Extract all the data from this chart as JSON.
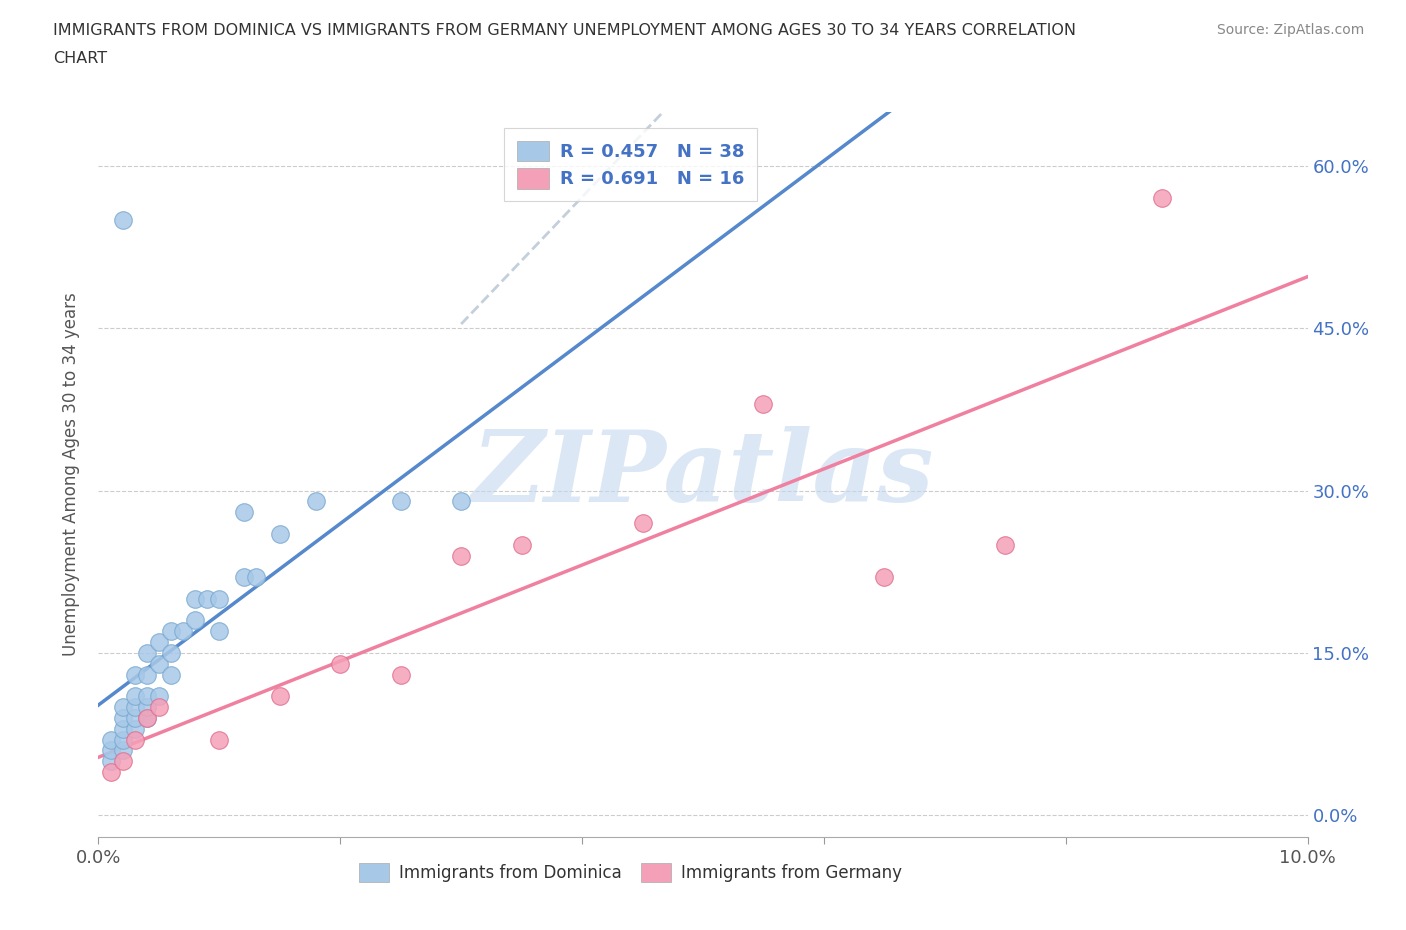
{
  "title_line1": "IMMIGRANTS FROM DOMINICA VS IMMIGRANTS FROM GERMANY UNEMPLOYMENT AMONG AGES 30 TO 34 YEARS CORRELATION",
  "title_line2": "CHART",
  "source": "Source: ZipAtlas.com",
  "ylabel": "Unemployment Among Ages 30 to 34 years",
  "xlim": [
    0.0,
    0.1
  ],
  "ylim": [
    -0.02,
    0.65
  ],
  "ylim_display": [
    0.0,
    0.65
  ],
  "dominica_color": "#a8c8e8",
  "dominica_edge": "#7aaad0",
  "germany_color": "#f4a0b8",
  "germany_edge": "#e07090",
  "trend_dominica_color": "#5588cc",
  "trend_germany_color": "#f080a0",
  "trend_dashed_color": "#bbccdd",
  "watermark": "ZIPatlas",
  "watermark_color": "#c5d8ef",
  "legend_label_1": "Immigrants from Dominica",
  "legend_label_2": "Immigrants from Germany",
  "dominica_R": 0.457,
  "dominica_N": 38,
  "germany_R": 0.691,
  "germany_N": 16,
  "dominica_x": [
    0.001,
    0.001,
    0.001,
    0.002,
    0.002,
    0.002,
    0.002,
    0.002,
    0.002,
    0.003,
    0.003,
    0.003,
    0.003,
    0.003,
    0.004,
    0.004,
    0.004,
    0.004,
    0.004,
    0.005,
    0.005,
    0.005,
    0.006,
    0.006,
    0.006,
    0.007,
    0.008,
    0.008,
    0.009,
    0.01,
    0.01,
    0.012,
    0.013,
    0.015,
    0.018,
    0.025,
    0.03,
    0.012
  ],
  "dominica_y": [
    0.05,
    0.06,
    0.07,
    0.06,
    0.07,
    0.08,
    0.09,
    0.1,
    0.55,
    0.08,
    0.09,
    0.1,
    0.11,
    0.13,
    0.09,
    0.1,
    0.11,
    0.13,
    0.15,
    0.11,
    0.14,
    0.16,
    0.13,
    0.15,
    0.17,
    0.17,
    0.18,
    0.2,
    0.2,
    0.17,
    0.2,
    0.22,
    0.22,
    0.26,
    0.29,
    0.29,
    0.29,
    0.28
  ],
  "germany_x": [
    0.001,
    0.002,
    0.003,
    0.004,
    0.005,
    0.01,
    0.015,
    0.02,
    0.025,
    0.03,
    0.035,
    0.045,
    0.055,
    0.065,
    0.075,
    0.088
  ],
  "germany_y": [
    0.04,
    0.05,
    0.07,
    0.09,
    0.1,
    0.07,
    0.11,
    0.14,
    0.13,
    0.24,
    0.25,
    0.27,
    0.38,
    0.22,
    0.25,
    0.57
  ]
}
